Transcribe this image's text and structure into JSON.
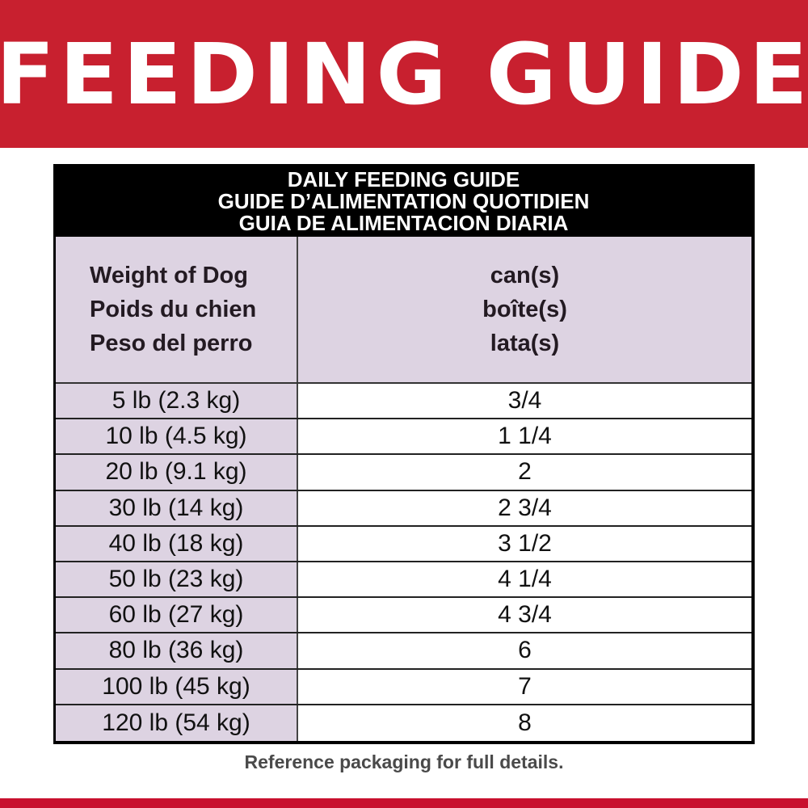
{
  "title": "FEEDING GUIDE",
  "table": {
    "header_lines": [
      "DAILY FEEDING GUIDE",
      "GUIDE D’ALIMENTATION QUOTIDIEN",
      "GUIA DE ALIMENTACION DIARIA"
    ],
    "col1_lines": [
      "Weight of Dog",
      "Poids du chien",
      "Peso del perro"
    ],
    "col2_lines": [
      "can(s)",
      "boîte(s)",
      "lata(s)"
    ],
    "rows": [
      {
        "weight": "5 lb (2.3 kg)",
        "cans": "3/4"
      },
      {
        "weight": "10 lb (4.5 kg)",
        "cans": "1 1/4"
      },
      {
        "weight": "20 lb (9.1 kg)",
        "cans": "2"
      },
      {
        "weight": "30 lb (14 kg)",
        "cans": "2 3/4"
      },
      {
        "weight": "40 lb (18 kg)",
        "cans": "3 1/2"
      },
      {
        "weight": "50 lb (23 kg)",
        "cans": "4 1/4"
      },
      {
        "weight": "60 lb (27 kg)",
        "cans": "4 3/4"
      },
      {
        "weight": "80 lb (36 kg)",
        "cans": "6"
      },
      {
        "weight": "100 lb (45 kg)",
        "cans": "7"
      },
      {
        "weight": "120 lb (54 kg)",
        "cans": "8"
      }
    ]
  },
  "footer": "Reference packaging for full details.",
  "colors": {
    "brand_red": "#c8202f",
    "row_label_bg": "#ddd3e2",
    "header_bg": "#000000"
  }
}
